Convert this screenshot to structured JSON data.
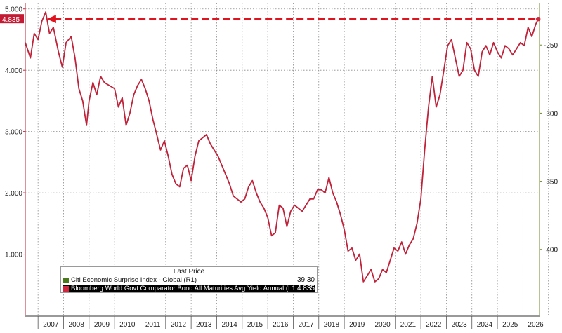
{
  "chart_data": {
    "type": "line",
    "title": "",
    "xlabel": "",
    "ylabel": "",
    "x_tick_labels": [
      "2007",
      "2008",
      "2009",
      "2010",
      "2011",
      "2012",
      "2013",
      "2014",
      "2015",
      "2016",
      "2017",
      "2018",
      "2019",
      "2020",
      "2021",
      "2022",
      "2023",
      "2024",
      "2025",
      "2026"
    ],
    "x_range": [
      2006.5,
      2026.65
    ],
    "left_axis": {
      "ticks": [
        "1.000",
        "2.000",
        "3.000",
        "4.000",
        "5.000"
      ],
      "tick_values": [
        1,
        2,
        3,
        4,
        5
      ],
      "ylim": [
        0,
        5.1
      ]
    },
    "right_axis": {
      "ticks": [
        "-250",
        "-300",
        "-350",
        "-400"
      ],
      "tick_values": [
        -250,
        -300,
        -350,
        -400
      ],
      "ylim": [
        -448.5,
        -219
      ]
    },
    "grid": true,
    "legend_position": "bottom-left",
    "legend_header": "Last Price",
    "last_value_label": "4.835",
    "annotation": "dashed arrow from latest value back to 2007 peak",
    "series": [
      {
        "name": "Citi Economic Surprise Index - Global  (R1)",
        "last": "39.30",
        "color": "#4a7a1c",
        "axis": "right",
        "x": [],
        "y": []
      },
      {
        "name": "Bloomberg World Govt Comparator Bond All Maturities Avg Yield Annual  (L1)",
        "last": "4.835",
        "color": "#c0223a",
        "axis": "left",
        "x": [
          2006.5,
          2006.7,
          2006.85,
          2007.0,
          2007.15,
          2007.3,
          2007.45,
          2007.6,
          2007.8,
          2007.95,
          2008.1,
          2008.3,
          2008.45,
          2008.6,
          2008.75,
          2008.9,
          2009.0,
          2009.15,
          2009.3,
          2009.45,
          2009.6,
          2009.8,
          2010.0,
          2010.15,
          2010.3,
          2010.45,
          2010.6,
          2010.75,
          2010.9,
          2011.05,
          2011.2,
          2011.35,
          2011.5,
          2011.65,
          2011.8,
          2011.95,
          2012.1,
          2012.25,
          2012.4,
          2012.55,
          2012.7,
          2012.85,
          2013.0,
          2013.15,
          2013.3,
          2013.45,
          2013.6,
          2013.75,
          2013.9,
          2014.05,
          2014.2,
          2014.35,
          2014.5,
          2014.65,
          2014.8,
          2014.95,
          2015.1,
          2015.25,
          2015.4,
          2015.55,
          2015.7,
          2015.85,
          2016.0,
          2016.15,
          2016.3,
          2016.45,
          2016.6,
          2016.75,
          2016.9,
          2017.05,
          2017.2,
          2017.35,
          2017.5,
          2017.65,
          2017.8,
          2017.95,
          2018.1,
          2018.25,
          2018.4,
          2018.55,
          2018.7,
          2018.85,
          2019.0,
          2019.15,
          2019.3,
          2019.45,
          2019.6,
          2019.75,
          2019.9,
          2020.05,
          2020.2,
          2020.35,
          2020.5,
          2020.65,
          2020.8,
          2020.95,
          2021.1,
          2021.25,
          2021.4,
          2021.55,
          2021.7,
          2021.85,
          2022.0,
          2022.15,
          2022.3,
          2022.45,
          2022.6,
          2022.75,
          2022.9,
          2023.05,
          2023.2,
          2023.35,
          2023.5,
          2023.65,
          2023.8,
          2023.95,
          2024.1,
          2024.25,
          2024.4,
          2024.55,
          2024.7,
          2024.85,
          2025.0,
          2025.15,
          2025.3,
          2025.45,
          2025.6,
          2025.75,
          2025.9,
          2026.05,
          2026.2,
          2026.35,
          2026.5,
          2026.6
        ],
        "y": [
          4.45,
          4.2,
          4.6,
          4.5,
          4.8,
          4.95,
          4.6,
          4.7,
          4.3,
          4.05,
          4.45,
          4.55,
          4.2,
          3.7,
          3.5,
          3.1,
          3.5,
          3.8,
          3.6,
          3.9,
          3.8,
          3.75,
          3.7,
          3.4,
          3.55,
          3.1,
          3.3,
          3.6,
          3.75,
          3.85,
          3.7,
          3.5,
          3.2,
          2.95,
          2.7,
          2.85,
          2.6,
          2.3,
          2.15,
          2.1,
          2.4,
          2.45,
          2.2,
          2.6,
          2.85,
          2.9,
          2.95,
          2.8,
          2.7,
          2.6,
          2.45,
          2.3,
          2.15,
          1.95,
          1.9,
          1.85,
          1.9,
          2.1,
          2.2,
          2.0,
          1.85,
          1.75,
          1.6,
          1.3,
          1.35,
          1.8,
          1.75,
          1.45,
          1.7,
          1.8,
          1.75,
          1.7,
          1.8,
          1.9,
          1.9,
          2.05,
          2.05,
          2.0,
          2.25,
          2.0,
          1.85,
          1.65,
          1.4,
          1.05,
          1.1,
          0.9,
          1.0,
          0.55,
          0.65,
          0.75,
          0.55,
          0.6,
          0.75,
          0.7,
          0.9,
          1.1,
          1.05,
          1.2,
          1.0,
          1.15,
          1.25,
          1.5,
          1.9,
          2.7,
          3.4,
          3.9,
          3.4,
          3.6,
          4.0,
          4.4,
          4.5,
          4.2,
          3.9,
          4.0,
          4.45,
          4.35,
          4.0,
          3.9,
          4.3,
          4.4,
          4.25,
          4.45,
          4.3,
          4.2,
          4.4,
          4.35,
          4.25,
          4.35,
          4.45,
          4.4,
          4.7,
          4.55,
          4.75,
          4.835
        ]
      }
    ]
  }
}
